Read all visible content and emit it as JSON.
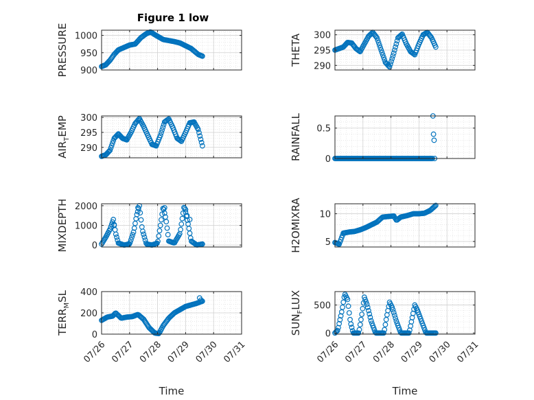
{
  "figure": {
    "title": "Figure 1 low"
  },
  "colors": {
    "marker": "#0072BD",
    "axis": "#262626",
    "grid": "#dcdcdc",
    "background": "#ffffff"
  },
  "x_ticks": [
    "07/26",
    "07/27",
    "07/28",
    "07/29",
    "07/30",
    "07/31"
  ],
  "chart_data": [
    {
      "type": "scatter",
      "title": "Figure 1 low",
      "ylabel": "PRESSURE",
      "xlabel": "",
      "ylim": [
        900,
        1015
      ],
      "yticks": [
        900,
        950,
        1000
      ],
      "grid": true,
      "minor_grid": true,
      "keys": [
        [
          0,
          910
        ],
        [
          0.15,
          915
        ],
        [
          0.3,
          928
        ],
        [
          0.45,
          945
        ],
        [
          0.6,
          958
        ],
        [
          0.8,
          965
        ],
        [
          1.0,
          972
        ],
        [
          1.2,
          975
        ],
        [
          1.4,
          993
        ],
        [
          1.6,
          1005
        ],
        [
          1.75,
          1010
        ],
        [
          1.9,
          1002
        ],
        [
          2.05,
          995
        ],
        [
          2.2,
          988
        ],
        [
          2.4,
          985
        ],
        [
          2.6,
          982
        ],
        [
          2.8,
          978
        ],
        [
          3.0,
          970
        ],
        [
          3.2,
          962
        ],
        [
          3.45,
          945
        ],
        [
          3.6,
          940
        ]
      ]
    },
    {
      "type": "scatter",
      "ylabel": "THETA",
      "xlabel": "",
      "ylim": [
        288.5,
        301.5
      ],
      "yticks": [
        290,
        295,
        300
      ],
      "grid": true,
      "minor_grid": true,
      "keys": [
        [
          0,
          295
        ],
        [
          0.15,
          295.5
        ],
        [
          0.3,
          296
        ],
        [
          0.45,
          297.5
        ],
        [
          0.6,
          297.3
        ],
        [
          0.75,
          295.5
        ],
        [
          0.9,
          294.5
        ],
        [
          1.05,
          297
        ],
        [
          1.2,
          299.5
        ],
        [
          1.35,
          300.8
        ],
        [
          1.5,
          299
        ],
        [
          1.65,
          295
        ],
        [
          1.8,
          291
        ],
        [
          1.95,
          289.5
        ],
        [
          2.1,
          294
        ],
        [
          2.25,
          299
        ],
        [
          2.4,
          300.2
        ],
        [
          2.55,
          297
        ],
        [
          2.7,
          294.5
        ],
        [
          2.85,
          293.5
        ],
        [
          3.0,
          297
        ],
        [
          3.15,
          300
        ],
        [
          3.3,
          300.8
        ],
        [
          3.45,
          299
        ],
        [
          3.6,
          296
        ]
      ]
    },
    {
      "type": "scatter",
      "ylabel": "AIR_TEMP",
      "xlabel": "",
      "ylim": [
        286.5,
        300.5
      ],
      "yticks": [
        290,
        295,
        300
      ],
      "grid": true,
      "minor_grid": true,
      "keys": [
        [
          0,
          287
        ],
        [
          0.15,
          287.5
        ],
        [
          0.3,
          289
        ],
        [
          0.45,
          293
        ],
        [
          0.6,
          294.5
        ],
        [
          0.75,
          293
        ],
        [
          0.9,
          292.5
        ],
        [
          1.05,
          295
        ],
        [
          1.2,
          298
        ],
        [
          1.35,
          299.6
        ],
        [
          1.5,
          297
        ],
        [
          1.65,
          294
        ],
        [
          1.8,
          291
        ],
        [
          1.95,
          290.5
        ],
        [
          2.1,
          294
        ],
        [
          2.25,
          298.5
        ],
        [
          2.4,
          299.5
        ],
        [
          2.55,
          296.5
        ],
        [
          2.7,
          293
        ],
        [
          2.85,
          292
        ],
        [
          3.0,
          295
        ],
        [
          3.15,
          298.2
        ],
        [
          3.3,
          298.5
        ],
        [
          3.45,
          296
        ],
        [
          3.6,
          290.5
        ]
      ]
    },
    {
      "type": "scatter",
      "ylabel": "RAINFALL",
      "xlabel": "",
      "ylim": [
        0,
        0.7
      ],
      "yticks": [
        0,
        0.5
      ],
      "grid": true,
      "minor_grid": true,
      "keys": [
        [
          0,
          0
        ],
        [
          3.5,
          0
        ]
      ],
      "extra": [
        [
          3.5,
          0.7
        ],
        [
          3.52,
          0.4
        ],
        [
          3.54,
          0.3
        ],
        [
          3.56,
          0
        ]
      ]
    },
    {
      "type": "scatter",
      "ylabel": "MIXDEPTH",
      "xlabel": "",
      "ylim": [
        -100,
        2100
      ],
      "yticks": [
        0,
        1000,
        2000
      ],
      "grid": true,
      "minor_grid": true,
      "keys": [
        [
          0,
          50
        ],
        [
          0.15,
          400
        ],
        [
          0.3,
          800
        ],
        [
          0.42,
          1300
        ],
        [
          0.5,
          600
        ],
        [
          0.6,
          100
        ],
        [
          0.8,
          0
        ],
        [
          1.0,
          50
        ],
        [
          1.15,
          700
        ],
        [
          1.25,
          1500
        ],
        [
          1.35,
          2000
        ],
        [
          1.45,
          800
        ],
        [
          1.6,
          50
        ],
        [
          1.8,
          0
        ],
        [
          2.0,
          100
        ],
        [
          2.1,
          1000
        ],
        [
          2.2,
          1950
        ],
        [
          2.3,
          1300
        ],
        [
          2.4,
          200
        ],
        [
          2.6,
          100
        ],
        [
          2.8,
          600
        ],
        [
          2.95,
          2000
        ],
        [
          3.1,
          1000
        ],
        [
          3.2,
          200
        ],
        [
          3.4,
          0
        ],
        [
          3.6,
          50
        ]
      ],
      "extra": [
        [
          0.45,
          1000
        ],
        [
          1.3,
          1900
        ],
        [
          2.25,
          1900
        ],
        [
          3.0,
          1800
        ],
        [
          3.05,
          1500
        ],
        [
          3.15,
          1300
        ]
      ]
    },
    {
      "type": "scatter",
      "ylabel": "H2OMIXRA",
      "xlabel": "",
      "ylim": [
        4,
        11.8
      ],
      "yticks": [
        5,
        10
      ],
      "grid": true,
      "minor_grid": true,
      "keys": [
        [
          0,
          4.8
        ],
        [
          0.15,
          4.5
        ],
        [
          0.3,
          6.5
        ],
        [
          0.5,
          6.7
        ],
        [
          0.7,
          6.8
        ],
        [
          0.9,
          7.1
        ],
        [
          1.1,
          7.5
        ],
        [
          1.3,
          8.0
        ],
        [
          1.5,
          8.5
        ],
        [
          1.7,
          9.4
        ],
        [
          1.9,
          9.5
        ],
        [
          2.1,
          9.6
        ],
        [
          2.2,
          8.8
        ],
        [
          2.35,
          9.4
        ],
        [
          2.6,
          9.7
        ],
        [
          2.8,
          10.0
        ],
        [
          3.0,
          10.0
        ],
        [
          3.2,
          10.1
        ],
        [
          3.4,
          10.6
        ],
        [
          3.6,
          11.5
        ]
      ]
    },
    {
      "type": "scatter",
      "ylabel": "TERR_MSL",
      "xlabel": "Time",
      "ylim": [
        0,
        400
      ],
      "yticks": [
        0,
        200,
        400
      ],
      "grid": true,
      "minor_grid": true,
      "keys": [
        [
          0,
          130
        ],
        [
          0.2,
          160
        ],
        [
          0.4,
          170
        ],
        [
          0.5,
          200
        ],
        [
          0.7,
          150
        ],
        [
          0.9,
          160
        ],
        [
          1.1,
          165
        ],
        [
          1.3,
          185
        ],
        [
          1.5,
          140
        ],
        [
          1.7,
          60
        ],
        [
          1.9,
          10
        ],
        [
          2.05,
          5
        ],
        [
          2.2,
          80
        ],
        [
          2.4,
          150
        ],
        [
          2.6,
          200
        ],
        [
          2.8,
          230
        ],
        [
          3.0,
          260
        ],
        [
          3.2,
          275
        ],
        [
          3.4,
          290
        ],
        [
          3.6,
          310
        ]
      ],
      "extra": [
        [
          3.5,
          340
        ],
        [
          3.55,
          320
        ]
      ]
    },
    {
      "type": "scatter",
      "ylabel": "SUN_FLUX",
      "xlabel": "Time",
      "ylim": [
        -20,
        740
      ],
      "yticks": [
        0,
        500
      ],
      "grid": true,
      "minor_grid": true,
      "keys": [
        [
          0,
          0
        ],
        [
          0.1,
          50
        ],
        [
          0.25,
          400
        ],
        [
          0.35,
          700
        ],
        [
          0.45,
          600
        ],
        [
          0.55,
          200
        ],
        [
          0.65,
          0
        ],
        [
          0.85,
          0
        ],
        [
          0.95,
          300
        ],
        [
          1.05,
          640
        ],
        [
          1.15,
          500
        ],
        [
          1.3,
          200
        ],
        [
          1.45,
          0
        ],
        [
          1.75,
          0
        ],
        [
          1.85,
          300
        ],
        [
          1.95,
          550
        ],
        [
          2.05,
          450
        ],
        [
          2.2,
          200
        ],
        [
          2.35,
          0
        ],
        [
          2.65,
          0
        ],
        [
          2.75,
          250
        ],
        [
          2.85,
          500
        ],
        [
          2.95,
          400
        ],
        [
          3.1,
          200
        ],
        [
          3.25,
          0
        ],
        [
          3.6,
          0
        ]
      ]
    }
  ]
}
